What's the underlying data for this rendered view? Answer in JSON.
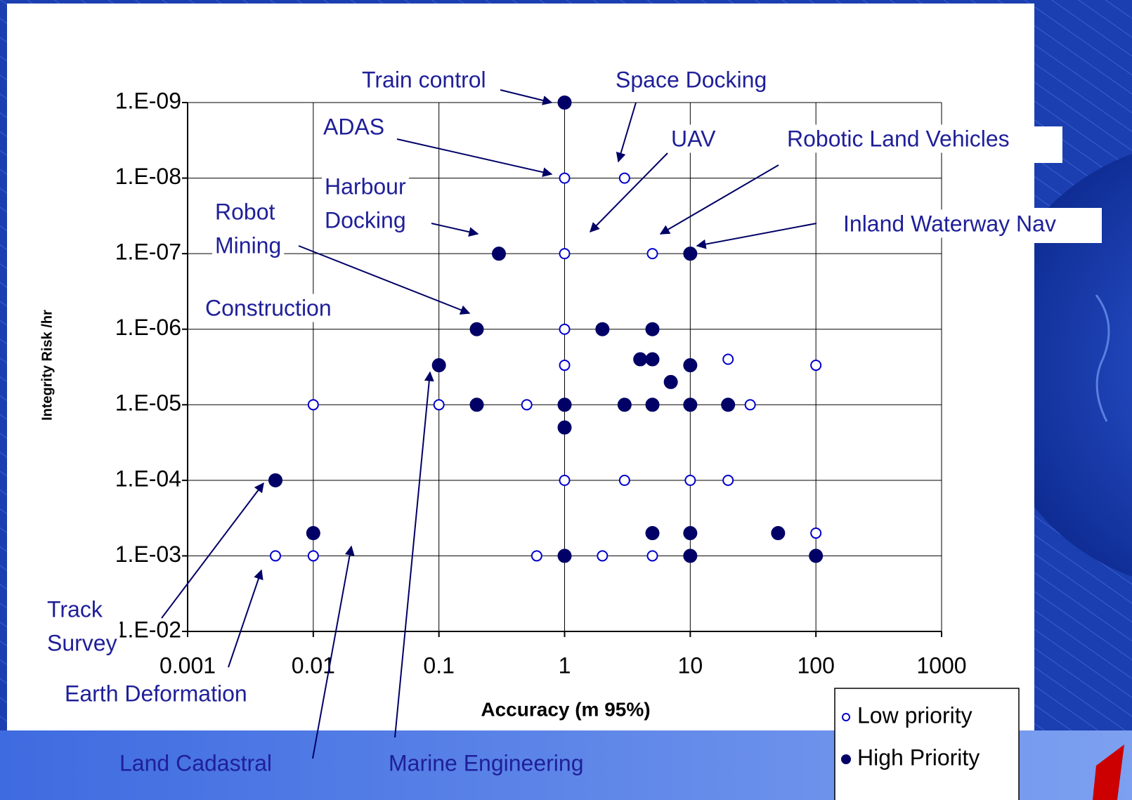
{
  "chart_data": {
    "type": "scatter",
    "x_label": "Accuracy (m 95%)",
    "y_label": "Integrity Risk /hr",
    "x_log": true,
    "y_log": true,
    "y_reversed": true,
    "grid": true,
    "legend": "lower right",
    "xlim": [
      0.001,
      1000
    ],
    "xticks": [
      0.001,
      0.01,
      0.1,
      1,
      10,
      100,
      1000
    ],
    "ylim": [
      1e-09,
      0.01
    ],
    "yticks": [
      {
        "value": 1e-09,
        "label": "1.E-09"
      },
      {
        "value": 1e-08,
        "label": "1.E-08"
      },
      {
        "value": 1e-07,
        "label": "1.E-07"
      },
      {
        "value": 1e-06,
        "label": "1.E-06"
      },
      {
        "value": 1e-05,
        "label": "1.E-05"
      },
      {
        "value": 0.0001,
        "label": "1.E-04"
      },
      {
        "value": 0.001,
        "label": "1.E-03"
      },
      {
        "value": 0.01,
        "label": "1.E-02"
      }
    ],
    "series": [
      {
        "name": "Low priority",
        "color": "#0000cc",
        "filled": false,
        "x": [
          1,
          3,
          1,
          5,
          1,
          1,
          20,
          100,
          0.01,
          0.1,
          0.5,
          30,
          1,
          3,
          10,
          20,
          100,
          0.005,
          0.01,
          0.6,
          2,
          5
        ],
        "values": [
          1e-08,
          1e-08,
          1e-07,
          1e-07,
          1e-06,
          3e-06,
          2.5e-06,
          3e-06,
          1e-05,
          1e-05,
          1e-05,
          1e-05,
          0.0001,
          0.0001,
          0.0001,
          0.0001,
          0.0005,
          0.001,
          0.001,
          0.001,
          0.001,
          0.001
        ]
      },
      {
        "name": "High Priority",
        "color": "#000066",
        "filled": true,
        "x": [
          1,
          0.3,
          10,
          0.2,
          2,
          5,
          4,
          5,
          0.1,
          10,
          7,
          0.2,
          1,
          3,
          5,
          10,
          20,
          1,
          0.005,
          0.01,
          5,
          10,
          50,
          1,
          10,
          100
        ],
        "values": [
          1e-09,
          1e-07,
          1e-07,
          1e-06,
          1e-06,
          1e-06,
          2.5e-06,
          2.5e-06,
          3e-06,
          3e-06,
          5e-06,
          1e-05,
          1e-05,
          1e-05,
          1e-05,
          1e-05,
          1e-05,
          2e-05,
          0.0001,
          0.0005,
          0.0005,
          0.0005,
          0.0005,
          0.001,
          0.001,
          0.001
        ]
      }
    ],
    "annotations": [
      {
        "text": [
          "Train control"
        ]
      },
      {
        "text": [
          "Space Docking"
        ]
      },
      {
        "text": [
          "ADAS"
        ]
      },
      {
        "text": [
          "UAV"
        ]
      },
      {
        "text": [
          "Robotic Land Vehicles"
        ]
      },
      {
        "text": [
          "Harbour",
          "Docking"
        ]
      },
      {
        "text": [
          "Robot",
          "Mining"
        ]
      },
      {
        "text": [
          "Inland Waterway Nav"
        ]
      },
      {
        "text": [
          "Construction"
        ]
      },
      {
        "text": [
          "Track",
          "Survey"
        ]
      },
      {
        "text": [
          "Earth Deformation"
        ]
      },
      {
        "text": [
          "Land Cadastral"
        ]
      },
      {
        "text": [
          "Marine Engineering"
        ]
      }
    ]
  }
}
